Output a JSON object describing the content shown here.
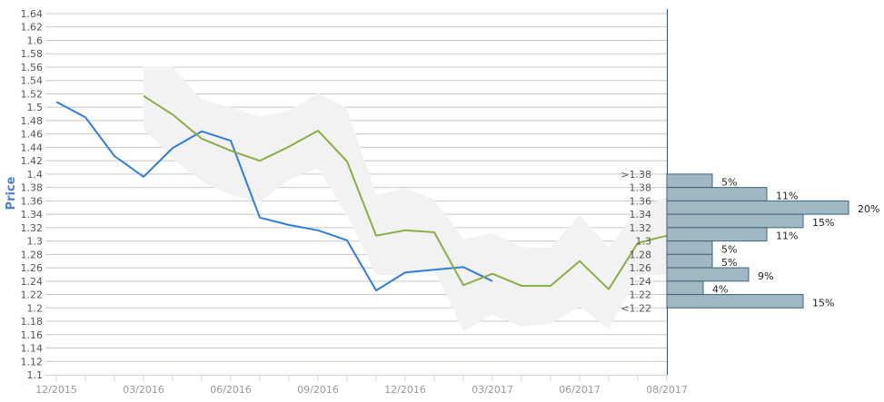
{
  "chart_data": {
    "type": "line",
    "ylabel": "Price",
    "ylim": [
      1.1,
      1.64
    ],
    "ystep": 0.02,
    "grid": true,
    "x_tick_labels": [
      {
        "month_index": 0,
        "label": "12/2015"
      },
      {
        "month_index": 3,
        "label": "03/2016"
      },
      {
        "month_index": 6,
        "label": "06/2016"
      },
      {
        "month_index": 9,
        "label": "09/2016"
      },
      {
        "month_index": 12,
        "label": "12/2016"
      },
      {
        "month_index": 15,
        "label": "03/2017"
      },
      {
        "month_index": 18,
        "label": "06/2017"
      },
      {
        "month_index": 21,
        "label": "08/2017"
      }
    ],
    "x_months": 21,
    "series": [
      {
        "color": "#2f7ed8",
        "start_index": 0,
        "values": [
          1.508,
          1.485,
          1.427,
          1.396,
          1.439,
          1.464,
          1.45,
          1.335,
          1.324,
          1.316,
          1.301,
          1.226,
          1.253,
          1.257,
          1.261,
          1.24
        ]
      },
      {
        "color": "#8bad45",
        "start_index": 3,
        "values": [
          1.517,
          1.489,
          1.453,
          1.435,
          1.42,
          1.441,
          1.465,
          1.419,
          1.308,
          1.316,
          1.313,
          1.234,
          1.251,
          1.233,
          1.233,
          1.27,
          1.228,
          1.297,
          1.308
        ]
      }
    ],
    "band": {
      "color": "#f2f2f2",
      "start_index": 3,
      "upper": [
        1.561,
        1.561,
        1.511,
        1.5,
        1.486,
        1.495,
        1.521,
        1.498,
        1.369,
        1.379,
        1.362,
        1.303,
        1.312,
        1.291,
        1.29,
        1.339,
        1.29,
        1.348,
        1.366
      ],
      "lower": [
        1.468,
        1.423,
        1.389,
        1.369,
        1.358,
        1.392,
        1.409,
        1.339,
        1.249,
        1.249,
        1.257,
        1.165,
        1.19,
        1.172,
        1.176,
        1.202,
        1.168,
        1.249,
        1.249
      ]
    },
    "histogram": {
      "type": "bar",
      "orientation": "horizontal",
      "color": "#a0b7c4",
      "border_color": "#3f6476",
      "bin_edge_labels": [
        ">1.38",
        "1.38",
        "1.36",
        "1.34",
        "1.32",
        "1.3",
        "1.28",
        "1.26",
        "1.24",
        "1.22",
        "<1.22"
      ],
      "values": [
        5,
        11,
        20,
        15,
        11,
        5,
        5,
        9,
        4,
        15
      ],
      "value_labels": [
        "5%",
        "11%",
        "20%",
        "15%",
        "11%",
        "5%",
        "5%",
        "9%",
        "4%",
        "15%"
      ]
    }
  }
}
